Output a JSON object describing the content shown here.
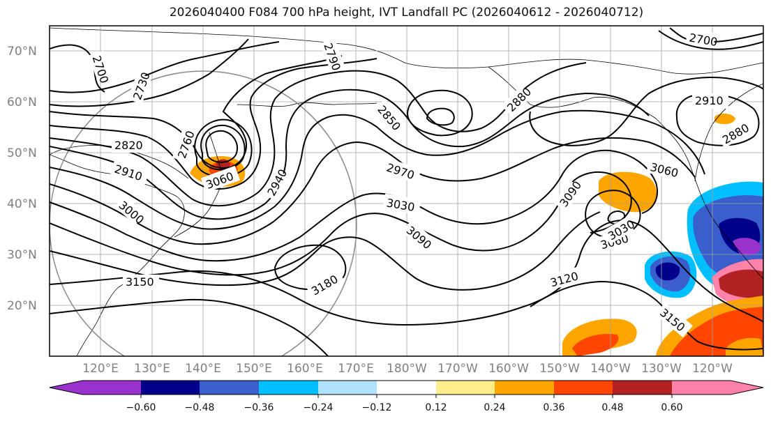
{
  "title": "2026040400 F084 700 hPa height, IVT Landfall PC (2026040612 - 2026040712)",
  "map": {
    "lat_labels": [
      "70°N",
      "60°N",
      "50°N",
      "40°N",
      "30°N",
      "20°N"
    ],
    "lon_labels": [
      "120°E",
      "130°E",
      "140°E",
      "150°E",
      "160°E",
      "170°E",
      "180°W",
      "170°W",
      "160°W",
      "150°W",
      "140°W",
      "130°W",
      "120°W"
    ],
    "contour_labels": [
      "2700",
      "2730",
      "2790",
      "2760",
      "2820",
      "2850",
      "2880",
      "2880",
      "2910",
      "2910",
      "2970",
      "2940",
      "3000",
      "3030",
      "3060",
      "3060",
      "3090",
      "3090",
      "3030",
      "3060",
      "3120",
      "3150",
      "3150",
      "3180",
      "2700"
    ]
  },
  "colorbar": {
    "tick_labels": [
      "−0.60",
      "−0.48",
      "−0.36",
      "−0.24",
      "−0.12",
      "0.12",
      "0.24",
      "0.36",
      "0.48",
      "0.60"
    ],
    "colors": [
      "#9932CC",
      "#00008B",
      "#3A5FCD",
      "#00BFFF",
      "#B0E2FF",
      "#FFFFFF",
      "#FFEC8B",
      "#FFA500",
      "#FF4500",
      "#B22222",
      "#FF82AB"
    ]
  }
}
